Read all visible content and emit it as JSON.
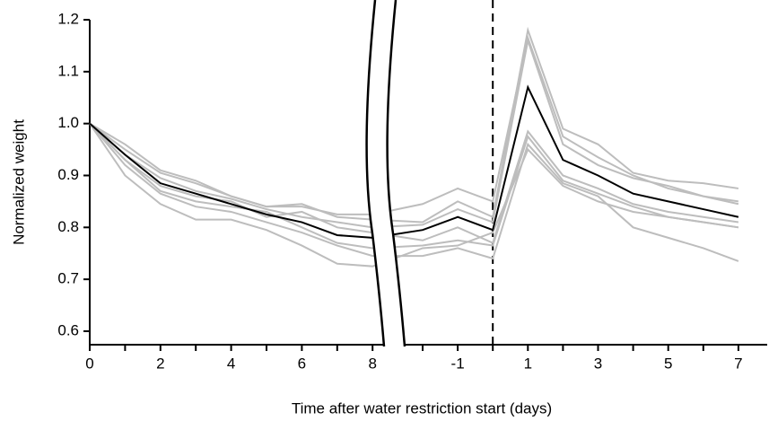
{
  "chart_data": {
    "type": "line",
    "xlabel": "Time after water restriction start (days)",
    "ylabel": "Normalized weight",
    "categories": [
      "0",
      null,
      "2",
      null,
      "4",
      null,
      "6",
      null,
      "8",
      null,
      "-1",
      null,
      "1",
      null,
      "3",
      null,
      "5",
      null,
      "7"
    ],
    "x_break_after": 8,
    "vline_at": 11,
    "ylim": [
      0.574,
      1.2
    ],
    "yticks": [
      0.6,
      0.7,
      0.8,
      0.9,
      {
        "value": 1,
        "label": "1.0"
      },
      1.1,
      1.2
    ],
    "series": [
      {
        "color": "#bdbdbd",
        "values": [
          1.0,
          0.96,
          0.91,
          0.89,
          0.86,
          0.84,
          0.845,
          0.82,
          0.815,
          0.81,
          0.85,
          0.82,
          1.18,
          0.99,
          0.96,
          0.905,
          0.89,
          0.885,
          0.875
        ]
      },
      {
        "color": "#bdbdbd",
        "values": [
          1.0,
          0.95,
          0.905,
          0.885,
          0.86,
          0.84,
          0.84,
          0.825,
          0.825,
          0.845,
          0.875,
          0.85,
          1.165,
          0.975,
          0.935,
          0.9,
          0.875,
          0.86,
          0.85
        ]
      },
      {
        "color": "#bdbdbd",
        "values": [
          1.0,
          0.94,
          0.895,
          0.87,
          0.855,
          0.835,
          0.82,
          0.81,
          0.8,
          0.805,
          0.835,
          0.81,
          1.16,
          0.96,
          0.92,
          0.895,
          0.88,
          0.86,
          0.845
        ]
      },
      {
        "color": "#bdbdbd",
        "values": [
          1.0,
          0.93,
          0.88,
          0.86,
          0.85,
          0.82,
          0.83,
          0.8,
          0.79,
          0.775,
          0.8,
          0.77,
          0.985,
          0.9,
          0.875,
          0.845,
          0.83,
          0.82,
          0.81
        ]
      },
      {
        "color": "#bdbdbd",
        "values": [
          1.0,
          0.93,
          0.87,
          0.85,
          0.84,
          0.83,
          0.8,
          0.77,
          0.76,
          0.765,
          0.775,
          0.765,
          0.975,
          0.89,
          0.865,
          0.84,
          0.82,
          0.81,
          0.8
        ]
      },
      {
        "color": "#bdbdbd",
        "values": [
          1.0,
          0.92,
          0.865,
          0.84,
          0.83,
          0.81,
          0.79,
          0.765,
          0.745,
          0.745,
          0.76,
          0.74,
          0.96,
          0.885,
          0.86,
          0.8,
          0.78,
          0.76,
          0.735
        ]
      },
      {
        "color": "#bdbdbd",
        "values": [
          1.0,
          0.9,
          0.845,
          0.815,
          0.815,
          0.795,
          0.765,
          0.73,
          0.725,
          0.76,
          0.765,
          0.79,
          0.95,
          0.88,
          0.85,
          0.83,
          0.82,
          0.81,
          0.8
        ]
      },
      {
        "color": "#000000",
        "values": [
          1.0,
          0.94,
          0.885,
          0.865,
          0.845,
          0.825,
          0.81,
          0.785,
          0.78,
          0.795,
          0.82,
          0.795,
          1.07,
          0.93,
          0.9,
          0.865,
          0.85,
          0.835,
          0.82
        ]
      }
    ]
  }
}
